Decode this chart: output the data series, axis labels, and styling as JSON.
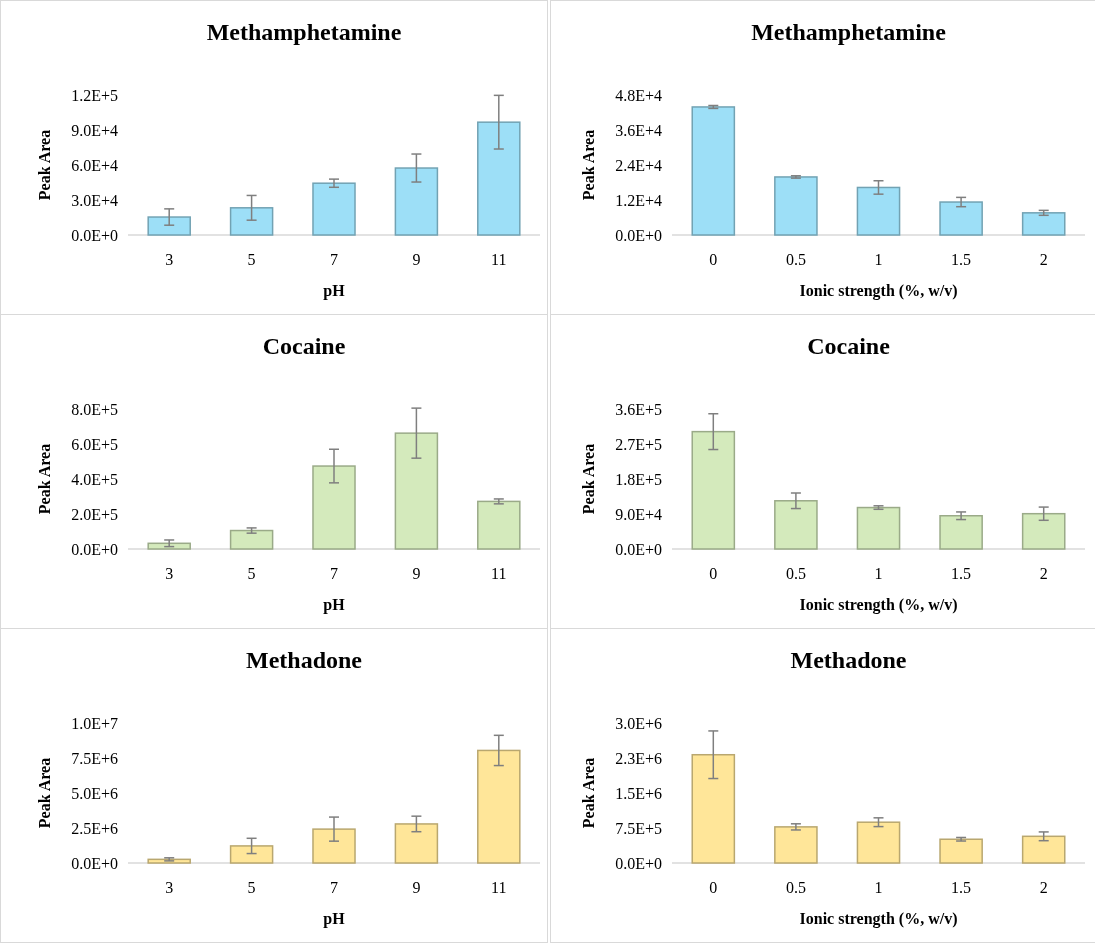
{
  "chart_data": [
    {
      "type": "bar",
      "title": "Methamphetamine",
      "xlabel": "pH",
      "ylabel": "Peak Area",
      "categories": [
        "3",
        "5",
        "7",
        "9",
        "11"
      ],
      "values": [
        15400,
        23300,
        44400,
        57400,
        96700
      ],
      "errors": [
        7000,
        10600,
        3500,
        12000,
        23000
      ],
      "color": "#9ddff7",
      "ylim": [
        0,
        120000
      ],
      "yticks": [
        {
          "value": 0,
          "label": "0.0E+0"
        },
        {
          "value": 30000,
          "label": "3.0E+4"
        },
        {
          "value": 60000,
          "label": "6.0E+4"
        },
        {
          "value": 90000,
          "label": "9.0E+4"
        },
        {
          "value": 120000,
          "label": "1.2E+5"
        }
      ]
    },
    {
      "type": "bar",
      "title": "Methamphetamine",
      "xlabel": "Ionic strength (%, w/v)",
      "ylabel": "Peak Area",
      "categories": [
        "0",
        "0.5",
        "1",
        "1.5",
        "2"
      ],
      "values": [
        43900,
        19900,
        16300,
        11300,
        7600
      ],
      "errors": [
        500,
        400,
        2300,
        1600,
        850
      ],
      "color": "#9ddff7",
      "ylim": [
        0,
        48000
      ],
      "yticks": [
        {
          "value": 0,
          "label": "0.0E+0"
        },
        {
          "value": 12000,
          "label": "1.2E+4"
        },
        {
          "value": 24000,
          "label": "2.4E+4"
        },
        {
          "value": 36000,
          "label": "3.6E+4"
        },
        {
          "value": 48000,
          "label": "4.8E+4"
        }
      ]
    },
    {
      "type": "bar",
      "title": "Cocaine",
      "xlabel": "pH",
      "ylabel": "Peak Area",
      "categories": [
        "3",
        "5",
        "7",
        "9",
        "11"
      ],
      "values": [
        32600,
        105500,
        474000,
        662000,
        272000
      ],
      "errors": [
        19000,
        15000,
        96000,
        143000,
        14000
      ],
      "color": "#d4eabc",
      "ylim": [
        0,
        800000
      ],
      "yticks": [
        {
          "value": 0,
          "label": "0.0E+0"
        },
        {
          "value": 200000,
          "label": "2.0E+5"
        },
        {
          "value": 400000,
          "label": "4.0E+5"
        },
        {
          "value": 600000,
          "label": "6.0E+5"
        },
        {
          "value": 800000,
          "label": "8.0E+5"
        }
      ]
    },
    {
      "type": "bar",
      "title": "Cocaine",
      "xlabel": "Ionic strength (%, w/v)",
      "ylabel": "Peak Area",
      "categories": [
        "0",
        "0.5",
        "1",
        "1.5",
        "2"
      ],
      "values": [
        301800,
        124000,
        106600,
        85500,
        90800
      ],
      "errors": [
        46000,
        20000,
        4500,
        9800,
        17000
      ],
      "color": "#d4eabc",
      "ylim": [
        0,
        360000
      ],
      "yticks": [
        {
          "value": 0,
          "label": "0.0E+0"
        },
        {
          "value": 90000,
          "label": "9.0E+4"
        },
        {
          "value": 180000,
          "label": "1.8E+5"
        },
        {
          "value": 270000,
          "label": "2.7E+5"
        },
        {
          "value": 360000,
          "label": "3.6E+5"
        }
      ]
    },
    {
      "type": "bar",
      "title": "Methadone",
      "xlabel": "pH",
      "ylabel": "Peak Area",
      "categories": [
        "3",
        "5",
        "7",
        "9",
        "11"
      ],
      "values": [
        261000,
        1220000,
        2420000,
        2790000,
        8040000
      ],
      "errors": [
        110000,
        545000,
        860000,
        555000,
        1080000
      ],
      "color": "#ffe699",
      "ylim": [
        0,
        10000000
      ],
      "yticks": [
        {
          "value": 0,
          "label": "0.0E+0"
        },
        {
          "value": 2500000,
          "label": "2.5E+6"
        },
        {
          "value": 5000000,
          "label": "5.0E+6"
        },
        {
          "value": 7500000,
          "label": "7.5E+6"
        },
        {
          "value": 10000000,
          "label": "1.0E+7"
        }
      ]
    },
    {
      "type": "bar",
      "title": "Methadone",
      "xlabel": "Ionic strength (%, w/v)",
      "ylabel": "Peak Area",
      "categories": [
        "0",
        "0.5",
        "1",
        "1.5",
        "2"
      ],
      "values": [
        2320000,
        774000,
        874000,
        509000,
        572000
      ],
      "errors": [
        510000,
        66000,
        94000,
        38000,
        94000
      ],
      "color": "#ffe699",
      "ylim": [
        0,
        3000000
      ],
      "yticks": [
        {
          "value": 0,
          "label": "0.0E+0"
        },
        {
          "value": 750000,
          "label": "7.5E+5"
        },
        {
          "value": 1500000,
          "label": "1.5E+6"
        },
        {
          "value": 2250000,
          "label": "2.3E+6"
        },
        {
          "value": 3000000,
          "label": "3.0E+6"
        }
      ]
    }
  ]
}
